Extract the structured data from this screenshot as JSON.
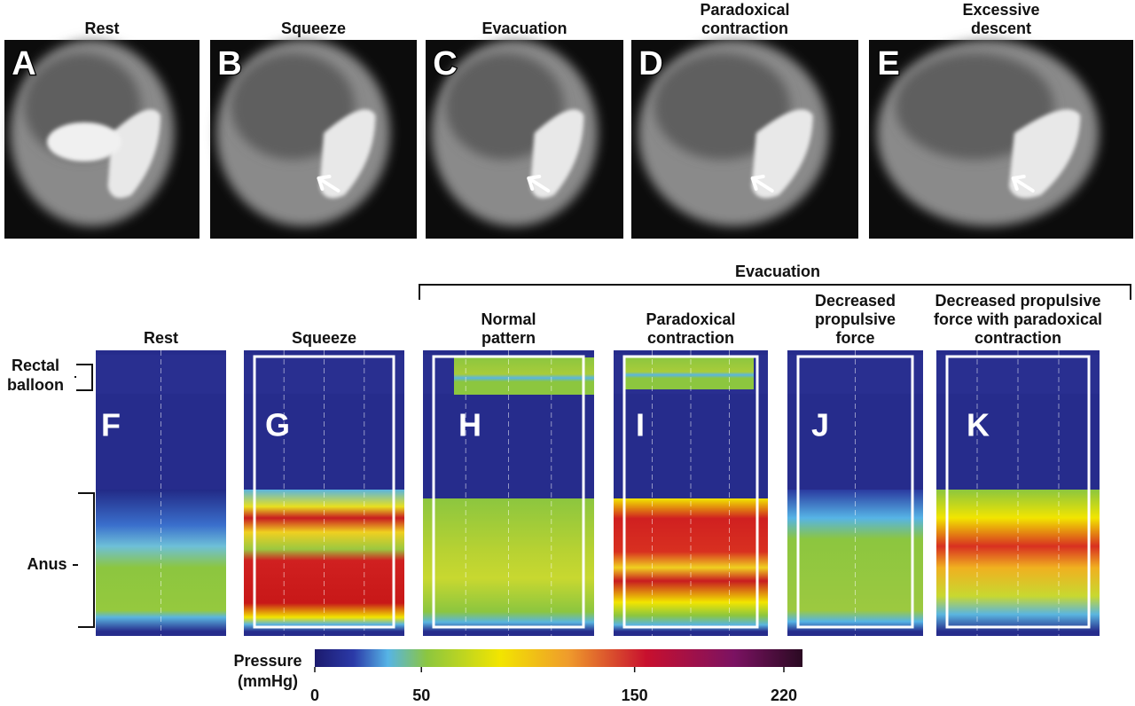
{
  "top_panels": [
    {
      "letter": "A",
      "title": [
        "Rest"
      ]
    },
    {
      "letter": "B",
      "title": [
        "Squeeze"
      ]
    },
    {
      "letter": "C",
      "title": [
        "Evacuation"
      ]
    },
    {
      "letter": "D",
      "title": [
        "Paradoxical",
        "contraction"
      ]
    },
    {
      "letter": "E",
      "title": [
        "Excessive",
        "descent"
      ]
    }
  ],
  "evacuation_header": "Evacuation",
  "bottom_panels": [
    {
      "letter": "F",
      "title": [
        "Rest"
      ]
    },
    {
      "letter": "G",
      "title": [
        "Squeeze"
      ]
    },
    {
      "letter": "H",
      "title": [
        "Normal",
        "pattern"
      ]
    },
    {
      "letter": "I",
      "title": [
        "Paradoxical",
        "contraction"
      ]
    },
    {
      "letter": "J",
      "title": [
        "Decreased",
        "propulsive",
        "force"
      ]
    },
    {
      "letter": "K",
      "title": [
        "Decreased propulsive",
        "force with paradoxical",
        "contraction"
      ]
    }
  ],
  "side_labels": {
    "rectal_balloon": [
      "Rectal",
      "balloon"
    ],
    "anus": "Anus"
  },
  "colorbar": {
    "label": [
      "Pressure",
      "(mmHg)"
    ],
    "range": [
      0,
      220
    ],
    "ticks": [
      0,
      50,
      150,
      220
    ]
  }
}
